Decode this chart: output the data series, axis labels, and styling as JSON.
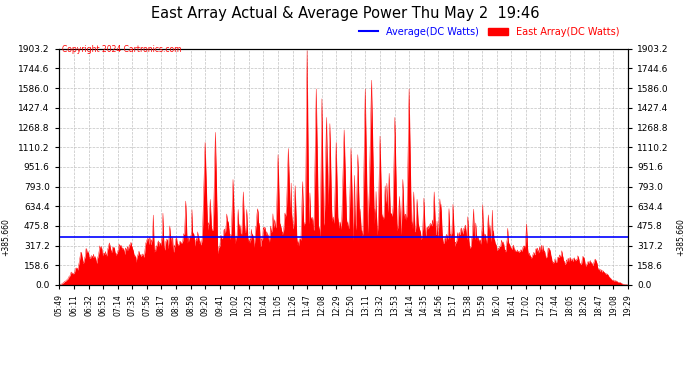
{
  "title": "East Array Actual & Average Power Thu May 2  19:46",
  "copyright": "Copyright 2024 Cartronics.com",
  "legend_average": "Average(DC Watts)",
  "legend_east": "East Array(DC Watts)",
  "ymin": 0.0,
  "ymax": 1903.2,
  "ytick_interval": 158.6,
  "average_line": 385.66,
  "avg_label": "385.660",
  "background_color": "#ffffff",
  "plot_bg_color": "#ffffff",
  "grid_color": "#bbbbbb",
  "fill_color": "#ff0000",
  "line_color": "#ff0000",
  "avg_color": "#0000ff",
  "title_color": "#000000",
  "copyright_color": "#ff0000",
  "time_labels": [
    "05:49",
    "06:11",
    "06:32",
    "06:53",
    "07:14",
    "07:35",
    "07:56",
    "08:17",
    "08:38",
    "08:59",
    "09:20",
    "09:41",
    "10:02",
    "10:23",
    "10:44",
    "11:05",
    "11:26",
    "11:47",
    "12:08",
    "12:29",
    "12:50",
    "13:11",
    "13:32",
    "13:53",
    "14:14",
    "14:35",
    "14:56",
    "15:17",
    "15:38",
    "15:59",
    "16:20",
    "16:41",
    "17:02",
    "17:23",
    "17:44",
    "18:05",
    "18:26",
    "18:47",
    "19:08",
    "19:29"
  ]
}
